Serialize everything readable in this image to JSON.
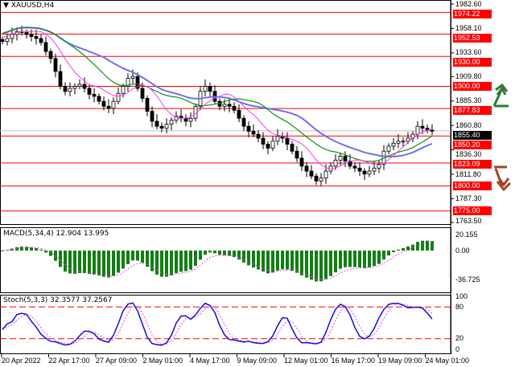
{
  "chart_data": {
    "type": "candlestick",
    "title": "XAUUSD,H4",
    "price_axis": {
      "range": [
        1763.5,
        1982.6
      ],
      "ticks": [
        "1982.60",
        "1958.10",
        "1933.60",
        "1909.80",
        "1885.30",
        "1860.80",
        "1836.30",
        "1811.80",
        "1787.30",
        "1763.50"
      ]
    },
    "current_price": "1855.40",
    "levels": [
      "1974.22",
      "1952.53",
      "1930.00",
      "1900.00",
      "1877.83",
      "1850.20",
      "1823.09",
      "1800.00",
      "1775.00"
    ],
    "closes": [
      1945,
      1948,
      1952,
      1955,
      1954,
      1952,
      1950,
      1948,
      1944,
      1935,
      1928,
      1915,
      1900,
      1895,
      1898,
      1900,
      1902,
      1898,
      1892,
      1890,
      1885,
      1880,
      1878,
      1885,
      1893,
      1900,
      1908,
      1910,
      1898,
      1888,
      1875,
      1865,
      1860,
      1858,
      1862,
      1866,
      1870,
      1868,
      1865,
      1868,
      1880,
      1895,
      1900,
      1895,
      1885,
      1880,
      1882,
      1880,
      1876,
      1868,
      1860,
      1855,
      1852,
      1848,
      1842,
      1838,
      1845,
      1850,
      1848,
      1842,
      1835,
      1828,
      1820,
      1815,
      1810,
      1805,
      1808,
      1815,
      1820,
      1826,
      1830,
      1825,
      1820,
      1818,
      1815,
      1812,
      1815,
      1818,
      1822,
      1835,
      1840,
      1843,
      1845,
      1845,
      1848,
      1852,
      1860,
      1858,
      1856,
      1855
    ],
    "macd": {
      "label": "MACD(5,34,4) 12.904 13.995",
      "ticks": [
        "20.155",
        "0.00",
        "-36.725"
      ]
    },
    "stoch": {
      "label": "Stoch(5,3,3) 32.3577 37.2567",
      "ticks": [
        "100",
        "80",
        "20",
        "0"
      ],
      "levels": [
        80,
        20
      ]
    },
    "x_ticks": [
      "20 Apr 2022",
      "22 Apr 17:00",
      "27 Apr 09:00",
      "2 May 01:00",
      "4 May 17:00",
      "9 May 09:00",
      "12 May 01:00",
      "16 May 17:00",
      "19 May 09:00",
      "24 May 01:00"
    ],
    "colors": {
      "ma_slow": "#7070f0",
      "ma_mid": "#109010",
      "ma_fast": "#f040f0",
      "level": "#ff0000",
      "histogram": "#108010",
      "stoch": "#1010e0",
      "up_arrow": "#2e7d32",
      "down_arrow": "#a0452a"
    }
  }
}
